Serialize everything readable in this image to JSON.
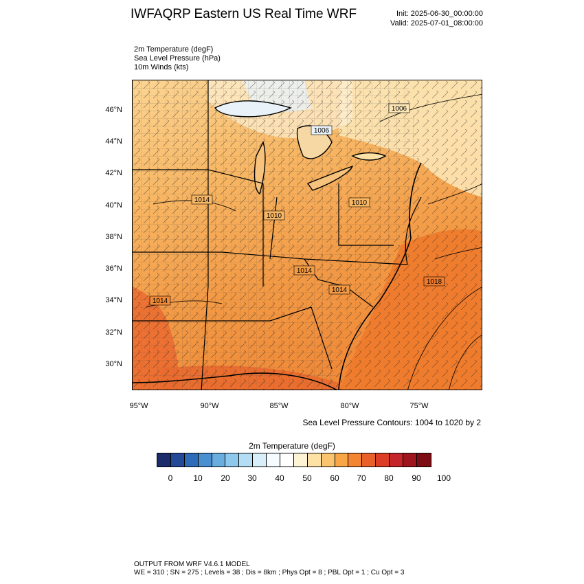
{
  "title": "IWFAQRP Eastern US Real Time WRF",
  "init": "Init: 2025-06-30_00:00:00",
  "valid": "Valid: 2025-07-01_08:00:00",
  "fields": [
    "2m Temperature   (degF)",
    "Sea Level Pressure   (hPa)",
    "10m Winds   (kts)"
  ],
  "lat_labels": [
    "46°N",
    "44°N",
    "42°N",
    "40°N",
    "38°N",
    "36°N",
    "34°N",
    "32°N",
    "30°N"
  ],
  "lon_labels": [
    "95°W",
    "90°W",
    "85°W",
    "80°W",
    "75°W"
  ],
  "pressure_labels": [
    "1006",
    "1006",
    "1014",
    "1010",
    "1010",
    "1014",
    "1014",
    "1018",
    "1014"
  ],
  "contour_note": "Sea Level Pressure Contours: 1004 to 1020 by 2",
  "colorbar": {
    "title": "2m Temperature  (degF)",
    "labels": [
      "0",
      "10",
      "20",
      "30",
      "40",
      "50",
      "60",
      "70",
      "80",
      "90",
      "100"
    ],
    "colors": [
      "#1b2c6b",
      "#234a96",
      "#2e6bb8",
      "#4a8fd0",
      "#6aaee0",
      "#8ec8ec",
      "#b4dcf3",
      "#d8eef9",
      "#f5fbfe",
      "#ffffff",
      "#fff3d6",
      "#fde2a6",
      "#fbc56f",
      "#f8a646",
      "#f28432",
      "#ea6029",
      "#dc3d26",
      "#c4242a",
      "#a0141f",
      "#7c0d15"
    ]
  },
  "footer": {
    "line1": "OUTPUT FROM WRF V4.6.1 MODEL",
    "line2": "WE = 310 ; SN = 275 ; Levels = 38 ; Dis = 8km ; Phys Opt = 8 ; PBL Opt = 1 ; Cu Opt = 3"
  }
}
